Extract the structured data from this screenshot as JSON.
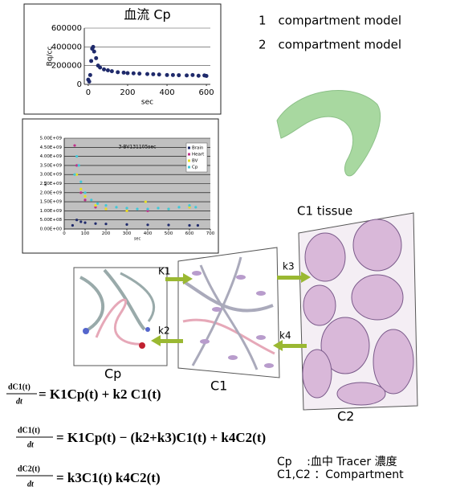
{
  "chart_data": [
    {
      "type": "scatter",
      "title": "血流 Cp",
      "ylabel": "Bq/cc",
      "xlabel": "sec",
      "color": "#1f2a6b",
      "x": [
        0,
        5,
        10,
        15,
        20,
        25,
        30,
        40,
        50,
        60,
        80,
        100,
        120,
        150,
        180,
        200,
        230,
        260,
        300,
        330,
        360,
        400,
        430,
        460,
        500,
        530,
        560,
        590,
        600
      ],
      "values": [
        50000,
        30000,
        100000,
        250000,
        380000,
        400000,
        350000,
        280000,
        200000,
        180000,
        160000,
        150000,
        140000,
        130000,
        125000,
        120000,
        118000,
        115000,
        110000,
        108000,
        105000,
        100000,
        100000,
        98000,
        95000,
        100000,
        92000,
        95000,
        90000
      ],
      "xlim": [
        -20,
        620
      ],
      "xticks": [
        0,
        200,
        400,
        600
      ],
      "ylim": [
        0,
        600000
      ],
      "yticks": [
        0,
        200000,
        400000,
        600000
      ],
      "grid": true
    },
    {
      "type": "scatter",
      "title": "3-BV131105sec",
      "ylabel": "au",
      "xlabel": "sec",
      "legend": "top-right",
      "grid": true,
      "xlim": [
        0,
        700
      ],
      "xticks": [
        0,
        100,
        200,
        300,
        400,
        500,
        600,
        700
      ],
      "ylim": [
        0,
        5000000000
      ],
      "yticks": [
        {
          "value": 0,
          "label": "0.00E+00"
        },
        {
          "value": 500000000,
          "label": "5.00E+08"
        },
        {
          "value": 1000000000,
          "label": "1.00E+09"
        },
        {
          "value": 1500000000,
          "label": "1.50E+09"
        },
        {
          "value": 2000000000,
          "label": "2.00E+09"
        },
        {
          "value": 2500000000,
          "label": "2.50E+09"
        },
        {
          "value": 3000000000,
          "label": "3.00E+09"
        },
        {
          "value": 3500000000,
          "label": "3.50E+09"
        },
        {
          "value": 4000000000,
          "label": "4.00E+09"
        },
        {
          "value": 4500000000,
          "label": "4.50E+09"
        },
        {
          "value": 5000000000,
          "label": "5.00E+09"
        }
      ],
      "series": [
        {
          "name": "Brain",
          "color": "#1f2a6b",
          "x": [
            40,
            60,
            80,
            100,
            150,
            200,
            300,
            400,
            500,
            600,
            640
          ],
          "values": [
            200000000,
            500000000,
            400000000,
            350000000,
            300000000,
            280000000,
            250000000,
            230000000,
            220000000,
            200000000,
            200000000
          ]
        },
        {
          "name": "Heart",
          "color": "#c0308a",
          "x": [
            50,
            60,
            80,
            100,
            150,
            200,
            300,
            400,
            500,
            600
          ],
          "values": [
            4600000000,
            3500000000,
            2000000000,
            1600000000,
            1200000000,
            1100000000,
            1000000000,
            1000000000,
            1100000000,
            1200000000
          ]
        },
        {
          "name": "BV",
          "color": "#e8e020",
          "x": [
            60,
            80,
            100,
            150,
            200,
            300,
            390,
            500,
            600
          ],
          "values": [
            3000000000,
            2200000000,
            1800000000,
            1300000000,
            1100000000,
            1000000000,
            1500000000,
            1100000000,
            1200000000
          ]
        },
        {
          "name": "Cp",
          "color": "#40c8d8",
          "x": [
            50,
            60,
            70,
            80,
            100,
            130,
            160,
            200,
            250,
            300,
            350,
            400,
            450,
            500,
            550,
            600,
            630
          ],
          "values": [
            3000000000,
            4000000000,
            3500000000,
            2600000000,
            2000000000,
            1600000000,
            1400000000,
            1300000000,
            1200000000,
            1150000000,
            1100000000,
            1100000000,
            1150000000,
            1100000000,
            1200000000,
            1300000000,
            1200000000
          ]
        }
      ]
    }
  ],
  "models": [
    "1　compartment model",
    "2　compartment model"
  ],
  "diagram": {
    "tissue": "C1 tissue",
    "k1": "K1",
    "k2": "k2",
    "k3": "k3",
    "k4": "k4",
    "cp": "Cp",
    "c1": "C1",
    "c2": "C2"
  },
  "equations": [
    {
      "numerator": "dC1(t)",
      "denominator": "dt",
      "rhs": "= K1Cp(t) + k2 C1(t)"
    },
    {
      "numerator": "dC1(t)",
      "denominator": "dt",
      "rhs": "= K1Cp(t) − (k2+k3)C1(t) + k4C2(t)"
    },
    {
      "numerator": "dC2(t)",
      "denominator": "dt",
      "rhs": "= k3C1(t)    k4C2(t)"
    }
  ],
  "notes": [
    "Cp　 :血中 Tracer 濃度",
    "C1,C2 ：Compartment"
  ]
}
